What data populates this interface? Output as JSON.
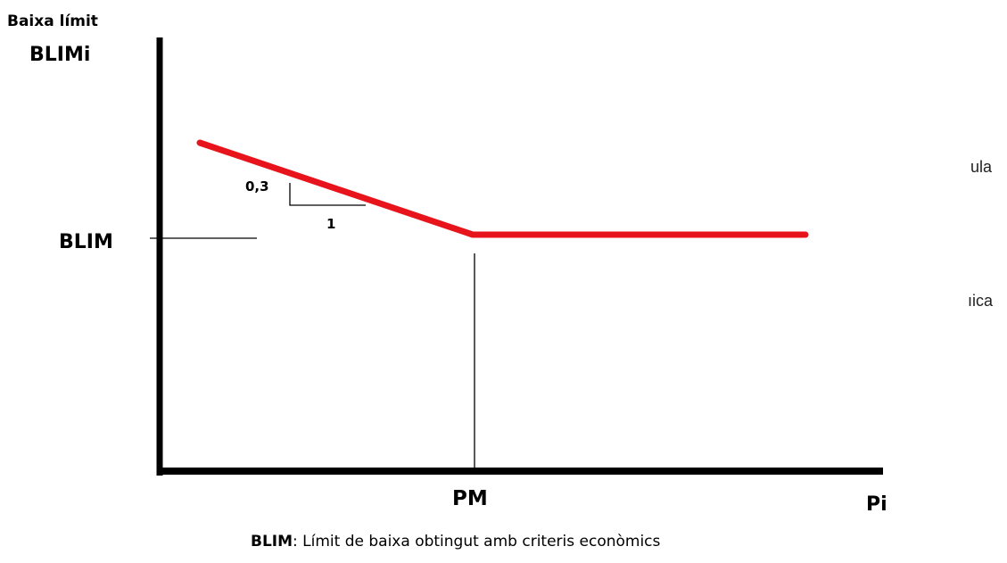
{
  "diagram": {
    "y_axis_title": "Baixa límit",
    "y_axis_variable": "BLIMi",
    "x_axis_label": "Pi",
    "level_label": "BLIM",
    "breakpoint_label": "PM",
    "slope_rise": "0,3",
    "slope_run": "1",
    "caption_term": "BLIM",
    "caption_text": ": Límit de baixa obtingut amb criteris econòmics",
    "line_color": "#e8141c"
  },
  "background_fragments": [
    "ula",
    "ıica"
  ]
}
